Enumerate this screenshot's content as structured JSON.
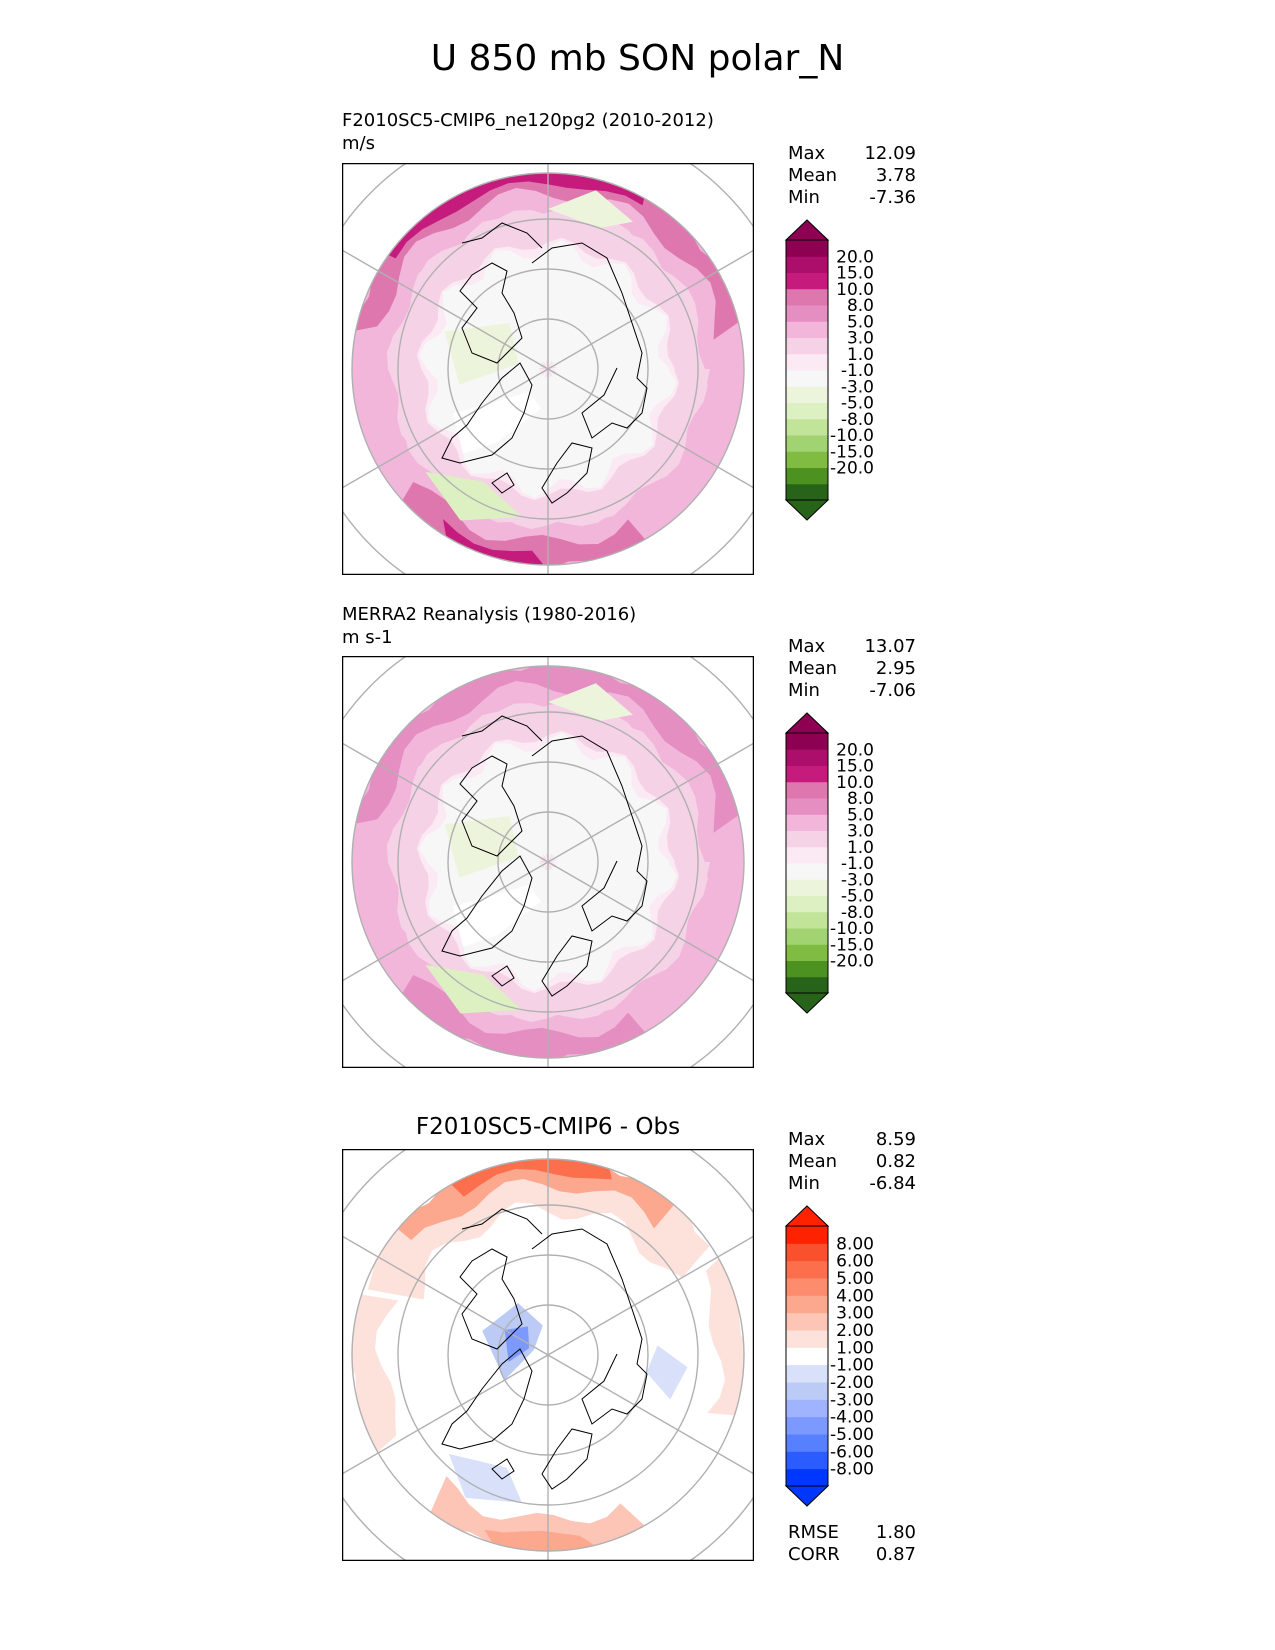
{
  "title": "U 850 mb SON polar_N",
  "colors": {
    "ref": [
      "#276419",
      "#4d9221",
      "#7fbc41",
      "#a1d372",
      "#c1e499",
      "#dcf0c2",
      "#ecf5dc",
      "#f7f7f7",
      "#fbe9f3",
      "#f6d2e7",
      "#f1b6da",
      "#e58ec2",
      "#de77ae",
      "#c51b7d",
      "#ab0e6b",
      "#8e0152"
    ],
    "diff": [
      "#0037ff",
      "#2a5cff",
      "#5780ff",
      "#7b99ff",
      "#9fb3ff",
      "#bccbf5",
      "#d8e0fa",
      "#ffffff",
      "#fde2dc",
      "#fcc5b5",
      "#fca88e",
      "#fc8c6c",
      "#fb6f4d",
      "#f9502d",
      "#ff2200"
    ]
  },
  "panels": [
    {
      "name": "test",
      "title_line1": "F2010SC5-CMIP6_ne120pg2 (2010-2012)",
      "title_line2": "m/s",
      "stats": [
        {
          "label": "Max",
          "value": "12.09"
        },
        {
          "label": "Mean",
          "value": "3.78"
        },
        {
          "label": "Min",
          "value": "-7.36"
        }
      ],
      "colorbar": [
        "20.0",
        "15.0",
        "10.0",
        "8.0",
        "5.0",
        "3.0",
        "1.0",
        "-1.0",
        "-3.0",
        "-5.0",
        "-8.0",
        "-10.0",
        "-15.0",
        "-20.0"
      ]
    },
    {
      "name": "ref",
      "title_line1": "MERRA2 Reanalysis (1980-2016)",
      "title_line2": "m s-1",
      "stats": [
        {
          "label": "Max",
          "value": "13.07"
        },
        {
          "label": "Mean",
          "value": "2.95"
        },
        {
          "label": "Min",
          "value": "-7.06"
        }
      ],
      "colorbar": [
        "20.0",
        "15.0",
        "10.0",
        "8.0",
        "5.0",
        "3.0",
        "1.0",
        "-1.0",
        "-3.0",
        "-5.0",
        "-8.0",
        "-10.0",
        "-15.0",
        "-20.0"
      ]
    },
    {
      "name": "diff",
      "title": "F2010SC5-CMIP6 - Obs",
      "stats": [
        {
          "label": "Max",
          "value": "8.59"
        },
        {
          "label": "Mean",
          "value": "0.82"
        },
        {
          "label": "Min",
          "value": "-6.84"
        }
      ],
      "colorbar": [
        "8.00",
        "6.00",
        "5.00",
        "4.00",
        "3.00",
        "2.00",
        "1.00",
        "-1.00",
        "-2.00",
        "-3.00",
        "-4.00",
        "-5.00",
        "-6.00",
        "-8.00"
      ],
      "metrics": [
        {
          "label": "RMSE",
          "value": "1.80"
        },
        {
          "label": "CORR",
          "value": "0.87"
        }
      ]
    }
  ],
  "chart_data": [
    {
      "type": "heatmap",
      "title": "F2010SC5-CMIP6_ne120pg2 (2010-2012)",
      "units": "m/s",
      "projection": "north polar stereographic",
      "max": 12.09,
      "mean": 3.78,
      "min": -7.36,
      "levels": [
        -20,
        -15,
        -10,
        -8,
        -5,
        -3,
        -1,
        1,
        3,
        5,
        8,
        10,
        15,
        20
      ]
    },
    {
      "type": "heatmap",
      "title": "MERRA2 Reanalysis (1980-2016)",
      "units": "m s-1",
      "projection": "north polar stereographic",
      "max": 13.07,
      "mean": 2.95,
      "min": -7.06,
      "levels": [
        -20,
        -15,
        -10,
        -8,
        -5,
        -3,
        -1,
        1,
        3,
        5,
        8,
        10,
        15,
        20
      ]
    },
    {
      "type": "heatmap",
      "title": "F2010SC5-CMIP6 - Obs",
      "projection": "north polar stereographic",
      "max": 8.59,
      "mean": 0.82,
      "min": -6.84,
      "rmse": 1.8,
      "corr": 0.87,
      "levels": [
        -8,
        -6,
        -5,
        -4,
        -3,
        -2,
        -1,
        1,
        2,
        3,
        4,
        5,
        6,
        8
      ]
    }
  ]
}
